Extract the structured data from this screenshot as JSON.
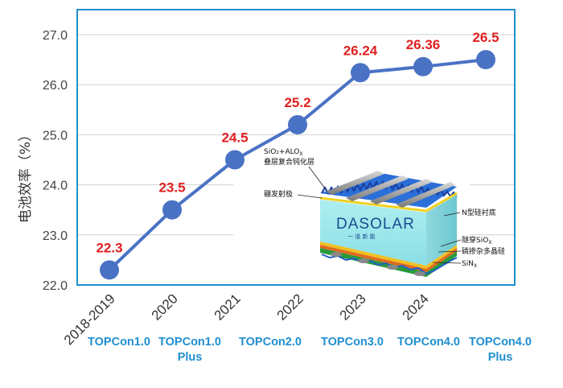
{
  "chart_data": {
    "type": "line",
    "title": "",
    "ylabel": "电池效率（%）",
    "xlabel": "",
    "ylim": [
      22.0,
      27.0
    ],
    "yticks": [
      "22.0",
      "23.0",
      "24.0",
      "25.0",
      "26.0",
      "27.0"
    ],
    "categories": [
      "2018-2019",
      "2020",
      "2021",
      "2022",
      "2023",
      "2024",
      ""
    ],
    "generations": [
      [
        "TOPCon1.0"
      ],
      [
        "TOPCon1.0",
        "Plus"
      ],
      [
        "TOPCon2.0"
      ],
      [
        "TOPCon3.0"
      ],
      [
        "TOPCon4.0"
      ],
      [
        "TOPCon4.0",
        "Plus"
      ]
    ],
    "series": [
      {
        "values": [
          22.3,
          23.5,
          24.5,
          25.2,
          26.24,
          26.36,
          26.5
        ],
        "labels": [
          "22.3",
          "23.5",
          "24.5",
          "25.2",
          "26.24",
          "26.36",
          "26.5"
        ]
      }
    ],
    "grid": true,
    "colors": {
      "line": "#4a72c4",
      "marker": "#4a72c4",
      "data_label": "#e02020",
      "axis": "#1f8fd0",
      "generation": "#1f8fd0"
    },
    "inset": {
      "brand": "DASOLAR",
      "brand_sub": "一 道 新 能",
      "labels": {
        "passivation_line1": "SiO₂+ALO",
        "passivation_sub": "X",
        "passivation_line2": "叠层复合钝化层",
        "emitter": "硼发射极",
        "substrate": "N型硅衬底",
        "tunnel": "隧穿SiO",
        "tunnel_sub": "X",
        "poly": "磷掺杂多晶硅",
        "sin": "SiN",
        "sin_sub": "X"
      }
    }
  }
}
